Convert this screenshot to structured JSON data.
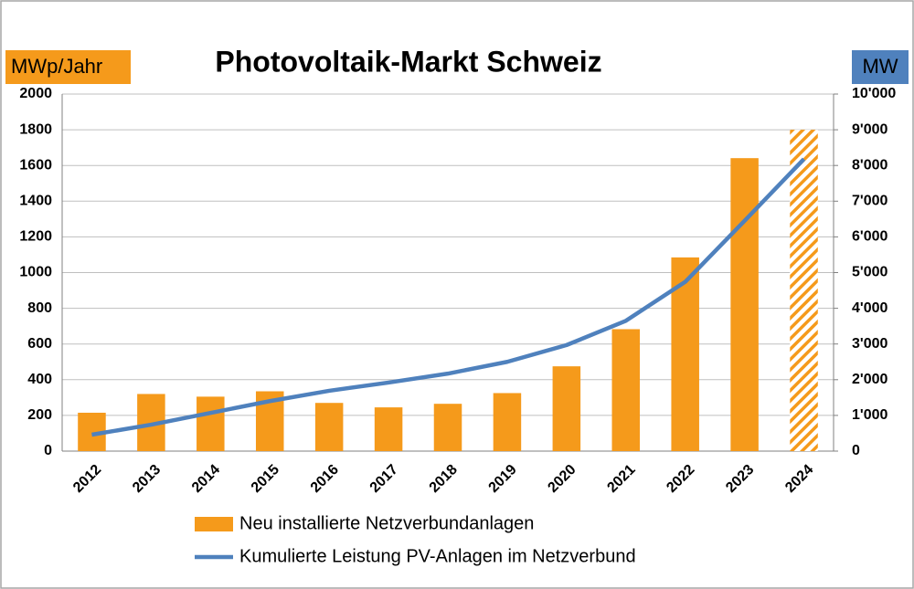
{
  "chart_data": {
    "type": "bar",
    "title": "Photovoltaik-Markt Schweiz",
    "ylabel": "MWp/Jahr",
    "y2label": "MW",
    "categories": [
      "2012",
      "2013",
      "2014",
      "2015",
      "2016",
      "2017",
      "2018",
      "2019",
      "2020",
      "2021",
      "2022",
      "2023",
      "2024"
    ],
    "series": [
      {
        "name": "Neu installierte Netzverbundanlagen",
        "type": "bar",
        "color": "#f59a1b",
        "values": [
          215,
          320,
          305,
          335,
          270,
          245,
          265,
          325,
          475,
          683,
          1085,
          1641,
          1800
        ],
        "hatch": [
          false,
          false,
          false,
          false,
          false,
          false,
          false,
          false,
          false,
          false,
          false,
          false,
          true
        ]
      },
      {
        "name": "Kumulierte Leistung PV-Anlagen im Netzverbund",
        "type": "line",
        "axis": "y2",
        "color": "#4f81bd",
        "values": [
          460,
          740,
          1070,
          1400,
          1690,
          1920,
          2170,
          2500,
          2970,
          3650,
          4740,
          6450,
          8180
        ]
      }
    ],
    "ylim": [
      0,
      2000
    ],
    "yticks": [
      0,
      200,
      400,
      600,
      800,
      1000,
      1200,
      1400,
      1600,
      1800,
      2000
    ],
    "y2lim": [
      0,
      10000
    ],
    "y2ticks": [
      0,
      {
        "value": 1000,
        "label": "1'000"
      },
      {
        "value": 2000,
        "label": "2'000"
      },
      {
        "value": 3000,
        "label": "3'000"
      },
      {
        "value": 4000,
        "label": "4'000"
      },
      {
        "value": 5000,
        "label": "5'000"
      },
      {
        "value": 6000,
        "label": "6'000"
      },
      {
        "value": 7000,
        "label": "7'000"
      },
      {
        "value": 8000,
        "label": "8'000"
      },
      {
        "value": 9000,
        "label": "9'000"
      },
      {
        "value": 10000,
        "label": "10'000"
      }
    ],
    "grid": true,
    "ylabel_color": "#f59a1b",
    "y2label_color": "#4f81bd"
  }
}
